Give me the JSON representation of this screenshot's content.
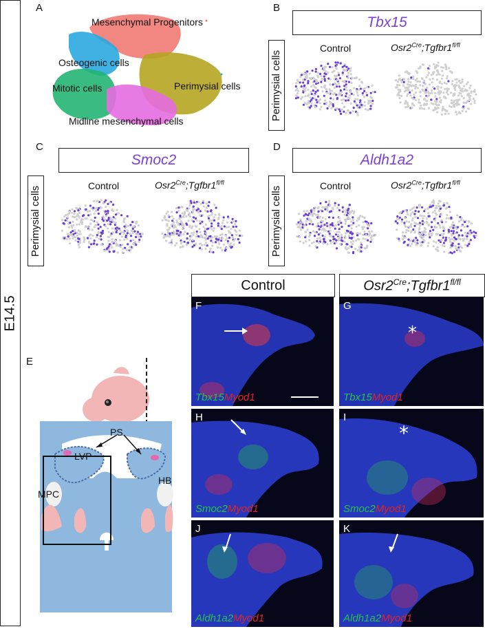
{
  "stage_label": "E14.5",
  "panelA": {
    "letter": "A",
    "clusters": [
      {
        "name": "Mesenchymal Progenitors",
        "color": "#f07a72"
      },
      {
        "name": "Osteogenic cells",
        "color": "#2aa8e0"
      },
      {
        "name": "Mitotic cells",
        "color": "#22b573"
      },
      {
        "name": "Perimysial cells",
        "color": "#b5a520"
      },
      {
        "name": "Midline mesenchymal cells",
        "color": "#e66be0"
      }
    ]
  },
  "featurePanels": [
    {
      "letter": "B",
      "gene": "Tbx15"
    },
    {
      "letter": "C",
      "gene": "Smoc2"
    },
    {
      "letter": "D",
      "gene": "Aldh1a2"
    }
  ],
  "row_label": "Perimysial cells",
  "conditions": {
    "control": "Control",
    "mutant_base": "Osr2",
    "mutant_sup1": "Cre",
    "mutant_mid": ";Tgfbr1",
    "mutant_sup2": "fl/fl"
  },
  "panelE": {
    "letter": "E",
    "labels": {
      "ps": "PS",
      "lvp": "LVP",
      "hb": "HB",
      "mpc": "MPC"
    }
  },
  "micrographs": [
    {
      "letter": "F",
      "green": "Tbx15",
      "red": "Myod1",
      "mark": "arrow"
    },
    {
      "letter": "G",
      "green": "Tbx15",
      "red": "Myod1",
      "mark": "asterisk"
    },
    {
      "letter": "H",
      "green": "Smoc2",
      "red": "Myod1",
      "mark": "arrow"
    },
    {
      "letter": "I",
      "green": "Smoc2",
      "red": "Myod1",
      "mark": "asterisk"
    },
    {
      "letter": "J",
      "green": "Aldh1a2",
      "red": "Myod1",
      "mark": "arrow"
    },
    {
      "letter": "K",
      "green": "Aldh1a2",
      "red": "Myod1",
      "mark": "arrow"
    }
  ],
  "colors": {
    "feature_high": "#6a3fd8",
    "feature_low": "#cfcfcf",
    "dapi": "#2c3fd8"
  }
}
